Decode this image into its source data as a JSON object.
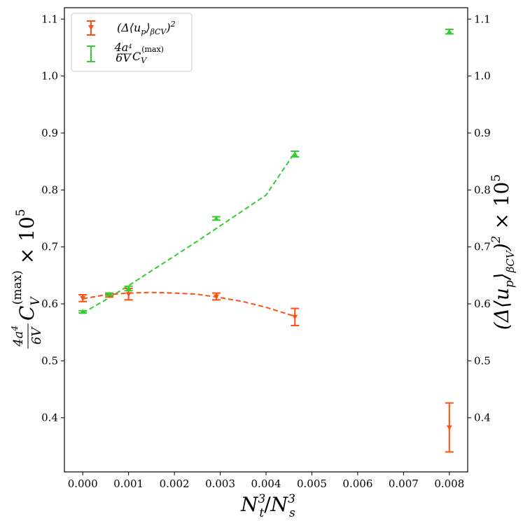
{
  "chart_data": {
    "type": "scatter",
    "xlabel": "N_t^3 / N_s^3",
    "ylabel_left": "(4a^4 / 6V) C_V^(max) × 10^5",
    "ylabel_right": "(Δ⟨u_p⟩_βCV)^2 × 10^5",
    "xlim": [
      -0.0004,
      0.0084
    ],
    "ylim": [
      0.305,
      1.12
    ],
    "x_ticks": [
      0.0,
      0.001,
      0.002,
      0.003,
      0.004,
      0.005,
      0.006,
      0.007,
      0.008
    ],
    "x_tick_labels": [
      "0.000",
      "0.001",
      "0.002",
      "0.003",
      "0.004",
      "0.005",
      "0.006",
      "0.007",
      "0.008"
    ],
    "y_ticks": [
      0.4,
      0.5,
      0.6,
      0.7,
      0.8,
      0.9,
      1.0,
      1.1
    ],
    "y_tick_labels": [
      "0.4",
      "0.5",
      "0.6",
      "0.7",
      "0.8",
      "0.9",
      "1.0",
      "1.1"
    ],
    "legend_position": "top-left",
    "series": [
      {
        "name": "(Δ⟨u_p⟩_βCV)^2",
        "color": "#ff4f0f",
        "marker": "triangle-down",
        "points": [
          {
            "x": 0.0,
            "y": 0.61,
            "err": 0.006
          },
          {
            "x": 0.000579,
            "y": 0.615,
            "err": 0.003
          },
          {
            "x": 0.001,
            "y": 0.617,
            "err": 0.01
          },
          {
            "x": 0.002915,
            "y": 0.613,
            "err": 0.006
          },
          {
            "x": 0.00463,
            "y": 0.577,
            "err": 0.015
          },
          {
            "x": 0.008,
            "y": 0.383,
            "err": 0.043
          }
        ],
        "fit": {
          "x": [
            0.0,
            0.0005,
            0.001,
            0.0015,
            0.002,
            0.0025,
            0.003,
            0.0035,
            0.004,
            0.00463
          ],
          "y": [
            0.609,
            0.616,
            0.619,
            0.62,
            0.619,
            0.617,
            0.611,
            0.604,
            0.594,
            0.578
          ]
        }
      },
      {
        "name": "(4a^4 / 6V) C_V^(max)",
        "color": "#33cc33",
        "marker": "triangle-up",
        "points": [
          {
            "x": 0.0,
            "y": 0.586,
            "err": 0.002
          },
          {
            "x": 0.000579,
            "y": 0.617,
            "err": 0.002
          },
          {
            "x": 0.001,
            "y": 0.627,
            "err": 0.004
          },
          {
            "x": 0.002915,
            "y": 0.75,
            "err": 0.003
          },
          {
            "x": 0.00463,
            "y": 0.863,
            "err": 0.005
          },
          {
            "x": 0.008,
            "y": 1.078,
            "err": 0.004
          }
        ],
        "fit": {
          "x": [
            0.0,
            0.0005,
            0.001,
            0.0015,
            0.002,
            0.0025,
            0.003,
            0.0035,
            0.004,
            0.00463
          ],
          "y": [
            0.584,
            0.607,
            0.632,
            0.658,
            0.684,
            0.71,
            0.737,
            0.764,
            0.791,
            0.866
          ]
        }
      }
    ]
  }
}
